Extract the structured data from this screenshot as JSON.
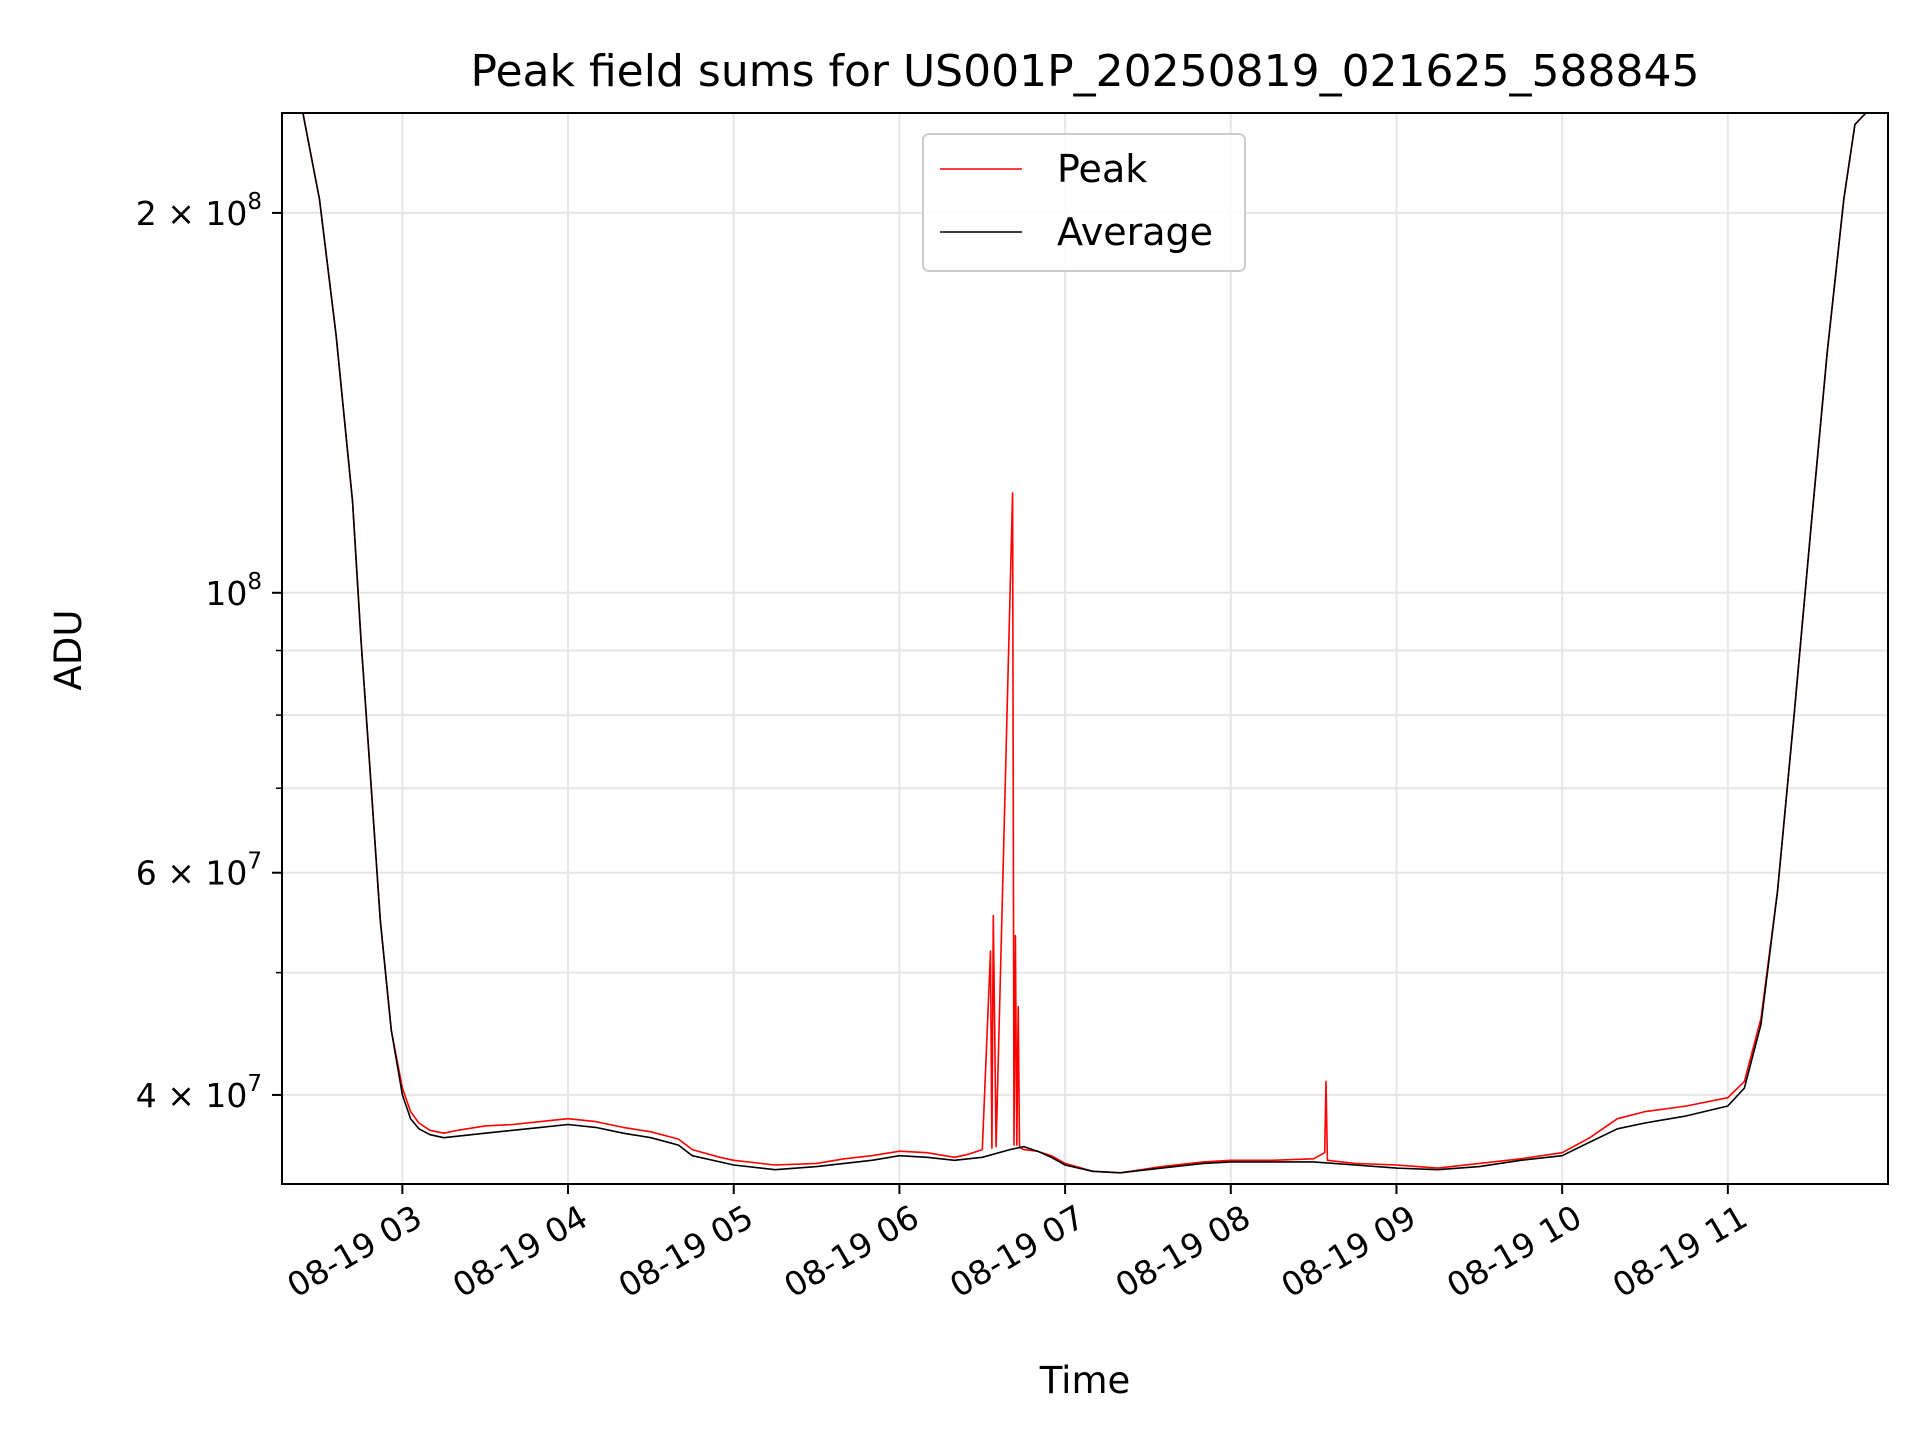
{
  "chart_data": {
    "type": "line",
    "title": "Peak field sums for US001P_20250819_021625_588845",
    "xlabel": "Time",
    "ylabel": "ADU",
    "y_scale": "log",
    "ylim": [
      34000000,
      240000000
    ],
    "xlim": [
      "2025-08-19T02:16:25",
      "2025-08-19T11:58:00"
    ],
    "grid": true,
    "legend_position": "top-center",
    "x_tick_labels": [
      {
        "label": "08-19 03",
        "value": "2025-08-19T03:00:00"
      },
      {
        "label": "08-19 04",
        "value": "2025-08-19T04:00:00"
      },
      {
        "label": "08-19 05",
        "value": "2025-08-19T05:00:00"
      },
      {
        "label": "08-19 06",
        "value": "2025-08-19T06:00:00"
      },
      {
        "label": "08-19 07",
        "value": "2025-08-19T07:00:00"
      },
      {
        "label": "08-19 08",
        "value": "2025-08-19T08:00:00"
      },
      {
        "label": "08-19 09",
        "value": "2025-08-19T09:00:00"
      },
      {
        "label": "08-19 10",
        "value": "2025-08-19T10:00:00"
      },
      {
        "label": "08-19 11",
        "value": "2025-08-19T11:00:00"
      }
    ],
    "y_tick_labels": [
      {
        "mantissa": "4 × 10",
        "exp": "7",
        "value": 40000000
      },
      {
        "mantissa": "6 × 10",
        "exp": "7",
        "value": 60000000
      },
      {
        "mantissa": "10",
        "exp": "8",
        "value": 100000000
      },
      {
        "mantissa": "2 × 10",
        "exp": "8",
        "value": 200000000
      }
    ],
    "y_minor_values": [
      50000000,
      70000000,
      80000000,
      90000000
    ],
    "series": [
      {
        "name": "Peak",
        "color": "#ff0000",
        "x": [
          "2025-08-19T02:16:25",
          "2025-08-19T02:24:00",
          "2025-08-19T02:30:00",
          "2025-08-19T02:36:00",
          "2025-08-19T02:42:00",
          "2025-08-19T02:45:00",
          "2025-08-19T02:48:00",
          "2025-08-19T02:52:00",
          "2025-08-19T02:56:00",
          "2025-08-19T03:00:00",
          "2025-08-19T03:03:00",
          "2025-08-19T03:06:00",
          "2025-08-19T03:10:00",
          "2025-08-19T03:15:00",
          "2025-08-19T03:20:00",
          "2025-08-19T03:30:00",
          "2025-08-19T03:40:00",
          "2025-08-19T03:50:00",
          "2025-08-19T04:00:00",
          "2025-08-19T04:10:00",
          "2025-08-19T04:20:00",
          "2025-08-19T04:30:00",
          "2025-08-19T04:40:00",
          "2025-08-19T04:45:00",
          "2025-08-19T04:55:00",
          "2025-08-19T05:00:00",
          "2025-08-19T05:15:00",
          "2025-08-19T05:30:00",
          "2025-08-19T05:40:00",
          "2025-08-19T05:50:00",
          "2025-08-19T06:00:00",
          "2025-08-19T06:10:00",
          "2025-08-19T06:20:00",
          "2025-08-19T06:25:00",
          "2025-08-19T06:30:00",
          "2025-08-19T06:33:00",
          "2025-08-19T06:33:30",
          "2025-08-19T06:34:00",
          "2025-08-19T06:35:00",
          "2025-08-19T06:41:00",
          "2025-08-19T06:41:30",
          "2025-08-19T06:42:00",
          "2025-08-19T06:42:30",
          "2025-08-19T06:43:00",
          "2025-08-19T06:43:30",
          "2025-08-19T06:44:00",
          "2025-08-19T06:45:00",
          "2025-08-19T06:50:00",
          "2025-08-19T06:55:00",
          "2025-08-19T07:00:00",
          "2025-08-19T07:10:00",
          "2025-08-19T07:20:00",
          "2025-08-19T07:35:00",
          "2025-08-19T07:50:00",
          "2025-08-19T08:00:00",
          "2025-08-19T08:15:00",
          "2025-08-19T08:30:00",
          "2025-08-19T08:34:00",
          "2025-08-19T08:34:30",
          "2025-08-19T08:35:00",
          "2025-08-19T08:45:00",
          "2025-08-19T09:00:00",
          "2025-08-19T09:15:00",
          "2025-08-19T09:30:00",
          "2025-08-19T09:45:00",
          "2025-08-19T10:00:00",
          "2025-08-19T10:10:00",
          "2025-08-19T10:20:00",
          "2025-08-19T10:30:00",
          "2025-08-19T10:45:00",
          "2025-08-19T11:00:00",
          "2025-08-19T11:06:00",
          "2025-08-19T11:12:00",
          "2025-08-19T11:18:00",
          "2025-08-19T11:24:00",
          "2025-08-19T11:30:00",
          "2025-08-19T11:36:00",
          "2025-08-19T11:42:00",
          "2025-08-19T11:46:00",
          "2025-08-19T11:50:00",
          "2025-08-19T11:58:00"
        ],
        "y": [
          240000000,
          240000000,
          205000000,
          160000000,
          118000000,
          92000000,
          74000000,
          55000000,
          45000000,
          40500000,
          38800000,
          38000000,
          37500000,
          37300000,
          37500000,
          37800000,
          37900000,
          38100000,
          38300000,
          38100000,
          37700000,
          37400000,
          36900000,
          36200000,
          35700000,
          35500000,
          35200000,
          35300000,
          35600000,
          35800000,
          36100000,
          36000000,
          35700000,
          35900000,
          36200000,
          52000000,
          36300000,
          55500000,
          36400000,
          120000000,
          36500000,
          53500000,
          36500000,
          47000000,
          36400000,
          36300000,
          36200000,
          36100000,
          35800000,
          35300000,
          34800000,
          34700000,
          35100000,
          35400000,
          35500000,
          35500000,
          35600000,
          36000000,
          41000000,
          35500000,
          35300000,
          35200000,
          35000000,
          35300000,
          35600000,
          36000000,
          37000000,
          38300000,
          38800000,
          39200000,
          39800000,
          41000000,
          46000000,
          58000000,
          80000000,
          112000000,
          155000000,
          205000000,
          235000000,
          240000000,
          240000000
        ]
      },
      {
        "name": "Average",
        "color": "#000000",
        "x": [
          "2025-08-19T02:16:25",
          "2025-08-19T02:24:00",
          "2025-08-19T02:30:00",
          "2025-08-19T02:36:00",
          "2025-08-19T02:42:00",
          "2025-08-19T02:45:00",
          "2025-08-19T02:48:00",
          "2025-08-19T02:52:00",
          "2025-08-19T02:56:00",
          "2025-08-19T03:00:00",
          "2025-08-19T03:03:00",
          "2025-08-19T03:06:00",
          "2025-08-19T03:10:00",
          "2025-08-19T03:15:00",
          "2025-08-19T03:20:00",
          "2025-08-19T03:30:00",
          "2025-08-19T03:40:00",
          "2025-08-19T03:50:00",
          "2025-08-19T04:00:00",
          "2025-08-19T04:10:00",
          "2025-08-19T04:20:00",
          "2025-08-19T04:30:00",
          "2025-08-19T04:40:00",
          "2025-08-19T04:45:00",
          "2025-08-19T04:55:00",
          "2025-08-19T05:00:00",
          "2025-08-19T05:15:00",
          "2025-08-19T05:30:00",
          "2025-08-19T05:40:00",
          "2025-08-19T05:50:00",
          "2025-08-19T06:00:00",
          "2025-08-19T06:10:00",
          "2025-08-19T06:20:00",
          "2025-08-19T06:30:00",
          "2025-08-19T06:40:00",
          "2025-08-19T06:45:00",
          "2025-08-19T06:50:00",
          "2025-08-19T06:55:00",
          "2025-08-19T07:00:00",
          "2025-08-19T07:10:00",
          "2025-08-19T07:20:00",
          "2025-08-19T07:35:00",
          "2025-08-19T07:50:00",
          "2025-08-19T08:00:00",
          "2025-08-19T08:15:00",
          "2025-08-19T08:30:00",
          "2025-08-19T08:45:00",
          "2025-08-19T09:00:00",
          "2025-08-19T09:15:00",
          "2025-08-19T09:30:00",
          "2025-08-19T09:45:00",
          "2025-08-19T10:00:00",
          "2025-08-19T10:10:00",
          "2025-08-19T10:20:00",
          "2025-08-19T10:30:00",
          "2025-08-19T10:45:00",
          "2025-08-19T11:00:00",
          "2025-08-19T11:06:00",
          "2025-08-19T11:12:00",
          "2025-08-19T11:18:00",
          "2025-08-19T11:24:00",
          "2025-08-19T11:30:00",
          "2025-08-19T11:36:00",
          "2025-08-19T11:42:00",
          "2025-08-19T11:46:00",
          "2025-08-19T11:50:00",
          "2025-08-19T11:58:00"
        ],
        "y": [
          240000000,
          240000000,
          205000000,
          160000000,
          118000000,
          92000000,
          74000000,
          55000000,
          45000000,
          40000000,
          38300000,
          37600000,
          37200000,
          37000000,
          37100000,
          37300000,
          37500000,
          37700000,
          37900000,
          37700000,
          37300000,
          37000000,
          36500000,
          35800000,
          35400000,
          35200000,
          34900000,
          35100000,
          35300000,
          35500000,
          35800000,
          35700000,
          35500000,
          35700000,
          36200000,
          36400000,
          36100000,
          35700000,
          35200000,
          34800000,
          34700000,
          35000000,
          35300000,
          35400000,
          35400000,
          35400000,
          35200000,
          35000000,
          34900000,
          35100000,
          35500000,
          35800000,
          36700000,
          37600000,
          38000000,
          38500000,
          39200000,
          40500000,
          45500000,
          58000000,
          80000000,
          112000000,
          155000000,
          205000000,
          235000000,
          240000000,
          240000000
        ]
      }
    ]
  }
}
